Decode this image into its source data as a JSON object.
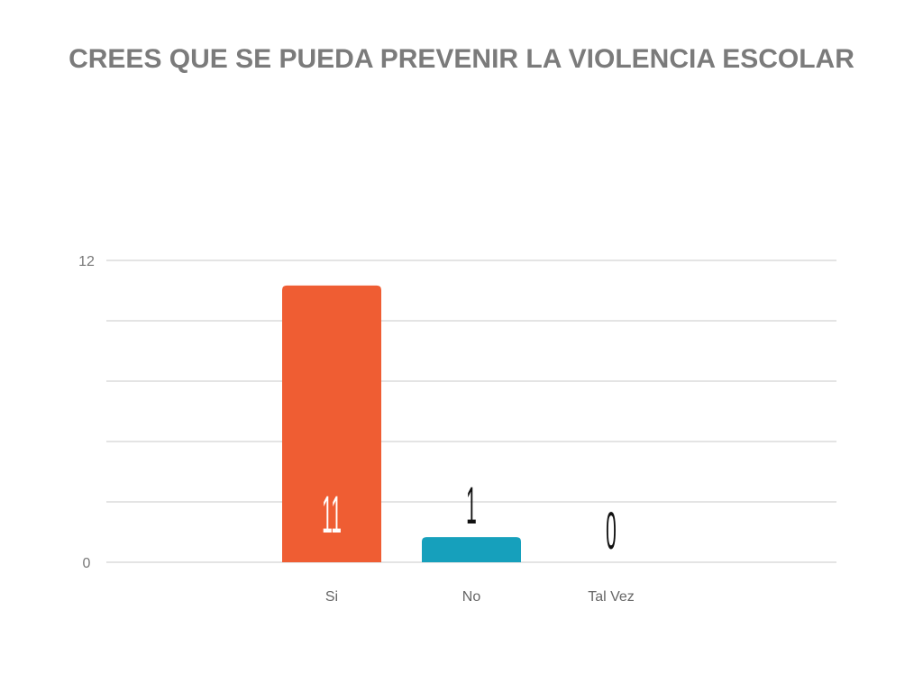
{
  "chart_data": {
    "type": "bar",
    "title": "CREES QUE SE PUEDA PREVENIR LA VIOLENCIA ESCOLAR",
    "categories": [
      "Si",
      "No",
      "Tal Vez"
    ],
    "values": [
      11,
      1,
      0
    ],
    "colors": [
      "#ef5d33",
      "#16a0bc",
      "#7f7f7f"
    ],
    "value_label_colors": [
      "#ffffff",
      "#111111",
      "#111111"
    ],
    "ylim": [
      0,
      12
    ],
    "y_tick_labels": [
      "0",
      "12"
    ],
    "gridlines": 5,
    "xlabel": "",
    "ylabel": "",
    "grid": true
  }
}
